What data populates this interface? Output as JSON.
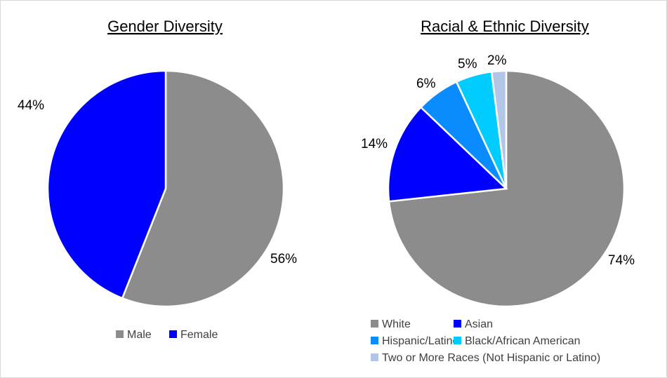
{
  "chart_data": [
    {
      "type": "pie",
      "title": "Gender Diversity",
      "start_angle_deg": 0,
      "direction": "clockwise",
      "slices": [
        {
          "label": "Male",
          "value": 56,
          "display": "56%",
          "color": "#8c8c8c"
        },
        {
          "label": "Female",
          "value": 44,
          "display": "44%",
          "color": "#0000ff"
        }
      ],
      "legend": {
        "placement": "bottom",
        "entries": [
          "Male",
          "Female"
        ]
      }
    },
    {
      "type": "pie",
      "title": "Racial & Ethnic Diversity",
      "start_angle_deg": 0,
      "direction": "clockwise",
      "slices": [
        {
          "label": "White",
          "value": 74,
          "display": "74%",
          "color": "#8c8c8c"
        },
        {
          "label": "Asian",
          "value": 14,
          "display": "14%",
          "color": "#0000ff"
        },
        {
          "label": "Hispanic/Latino",
          "value": 6,
          "display": "6%",
          "color": "#0a8cff"
        },
        {
          "label": "Black/African American",
          "value": 5,
          "display": "5%",
          "color": "#00ccff"
        },
        {
          "label": "Two or More Races (Not Hispanic or Latino)",
          "value": 2,
          "display": "2%",
          "color": "#b4c6e7"
        }
      ],
      "legend": {
        "placement": "bottom",
        "entries": [
          "White",
          "Hispanic/Latino",
          "Asian",
          "Black/African American",
          "Two or More Races (Not Hispanic or Latino)"
        ]
      }
    }
  ]
}
